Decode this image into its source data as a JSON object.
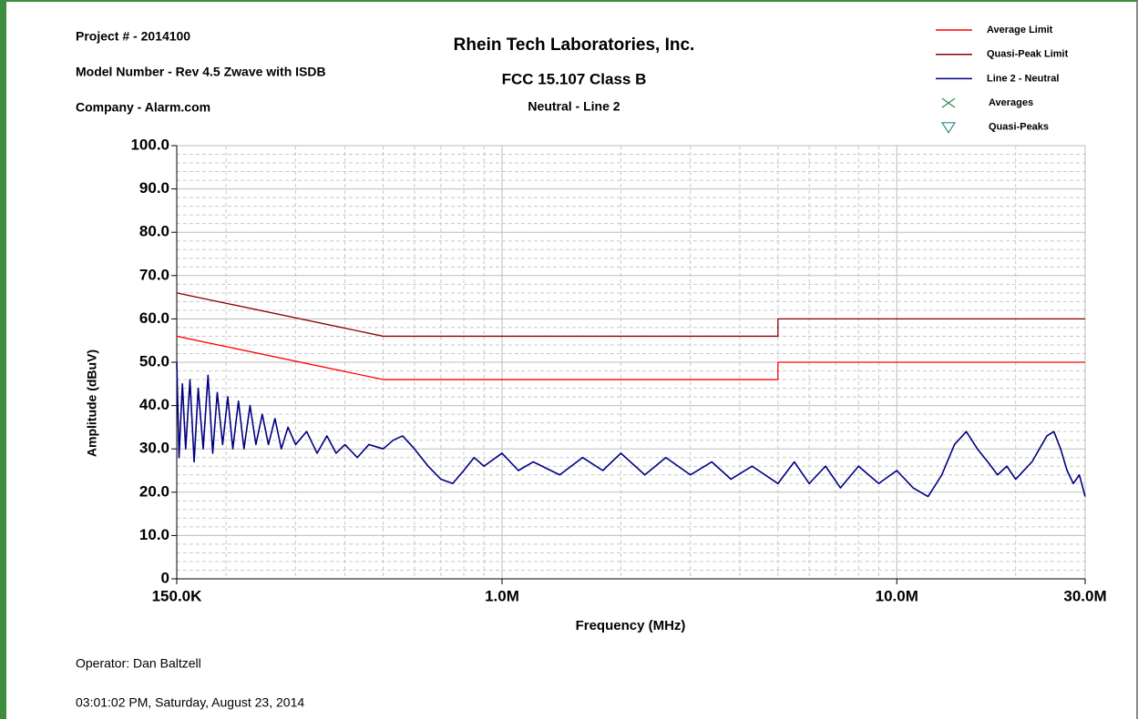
{
  "chart_data": {
    "type": "line",
    "header": [
      "Project # - 2014100",
      "Model Number - Rev 4.5 Zwave with ISDB",
      "Company - Alarm.com"
    ],
    "title": "Rhein Tech Laboratories, Inc.",
    "subtitle": "FCC 15.107 Class B",
    "subtitle2": "Neutral - Line 2",
    "xlabel": "Frequency (MHz)",
    "ylabel": "Amplitude (dBuV)",
    "xlog": true,
    "grid": true,
    "legend": "top-right",
    "xlim": [
      0.15,
      30
    ],
    "xticks": [
      {
        "value": 0.15,
        "label": "150.0K"
      },
      {
        "value": 1,
        "label": "1.0M"
      },
      {
        "value": 10,
        "label": "10.0M"
      },
      {
        "value": 30,
        "label": "30.0M"
      }
    ],
    "x_minor_ticks": [
      0.2,
      0.3,
      0.4,
      0.5,
      0.6,
      0.7,
      0.8,
      0.9,
      2,
      3,
      4,
      5,
      6,
      7,
      8,
      9,
      20
    ],
    "ylim": [
      0,
      100
    ],
    "yticks": [
      0,
      {
        "value": 10,
        "label": "10.0"
      },
      {
        "value": 20,
        "label": "20.0"
      },
      {
        "value": 30,
        "label": "30.0"
      },
      {
        "value": 40,
        "label": "40.0"
      },
      {
        "value": 50,
        "label": "50.0"
      },
      {
        "value": 60,
        "label": "60.0"
      },
      {
        "value": 70,
        "label": "70.0"
      },
      {
        "value": 80,
        "label": "80.0"
      },
      {
        "value": 90,
        "label": "90.0"
      },
      {
        "value": 100,
        "label": "100.0"
      }
    ],
    "y_minor_ticks": [
      2,
      4,
      6,
      8,
      12,
      14,
      16,
      18,
      22,
      24,
      26,
      28,
      32,
      34,
      36,
      38,
      42,
      44,
      46,
      48,
      52,
      54,
      56,
      58,
      62,
      64,
      66,
      68,
      72,
      74,
      76,
      78,
      82,
      84,
      86,
      88,
      92,
      94,
      96,
      98
    ],
    "series": [
      {
        "name": "Average Limit",
        "color": "#ff0000",
        "x": [
          0.15,
          0.5,
          5,
          5,
          30
        ],
        "values": [
          56,
          46,
          46,
          50,
          50
        ]
      },
      {
        "name": "Quasi-Peak Limit",
        "color": "#8b0000",
        "x": [
          0.15,
          0.5,
          5,
          5,
          30
        ],
        "values": [
          66,
          56,
          56,
          60,
          60
        ]
      },
      {
        "name": "Line 2 - Neutral",
        "color": "#000080",
        "x": [
          0.15,
          0.152,
          0.155,
          0.158,
          0.162,
          0.166,
          0.17,
          0.175,
          0.18,
          0.185,
          0.19,
          0.196,
          0.202,
          0.208,
          0.215,
          0.222,
          0.23,
          0.238,
          0.247,
          0.256,
          0.266,
          0.276,
          0.287,
          0.3,
          0.32,
          0.34,
          0.36,
          0.38,
          0.4,
          0.43,
          0.46,
          0.5,
          0.53,
          0.56,
          0.6,
          0.65,
          0.7,
          0.75,
          0.8,
          0.85,
          0.9,
          1,
          1.1,
          1.2,
          1.4,
          1.6,
          1.8,
          2,
          2.3,
          2.6,
          3,
          3.4,
          3.8,
          4.3,
          5,
          5.5,
          6,
          6.6,
          7.2,
          8,
          9,
          10,
          11,
          12,
          13,
          14,
          15,
          16,
          17,
          18,
          19,
          20,
          22,
          24,
          25,
          26,
          27,
          28,
          29,
          30
        ],
        "values": [
          50,
          28,
          45,
          30,
          46,
          27,
          44,
          30,
          47,
          29,
          43,
          31,
          42,
          30,
          41,
          30,
          40,
          31,
          38,
          31,
          37,
          30,
          35,
          31,
          34,
          29,
          33,
          29,
          31,
          28,
          31,
          30,
          32,
          33,
          30,
          26,
          23,
          22,
          25,
          28,
          26,
          29,
          25,
          27,
          24,
          28,
          25,
          29,
          24,
          28,
          24,
          27,
          23,
          26,
          22,
          27,
          22,
          26,
          21,
          26,
          22,
          25,
          21,
          19,
          24,
          31,
          34,
          30,
          27,
          24,
          26,
          23,
          27,
          33,
          34,
          30,
          25,
          22,
          24,
          19
        ]
      }
    ],
    "legend_markers": [
      {
        "name": "Averages",
        "marker": "x",
        "color": "#2e8b57"
      },
      {
        "name": "Quasi-Peaks",
        "marker": "triangle-down",
        "color": "#2e8b8b"
      }
    ],
    "footer": [
      "Operator: Dan Baltzell",
      "03:01:02 PM, Saturday, August 23, 2014"
    ]
  }
}
